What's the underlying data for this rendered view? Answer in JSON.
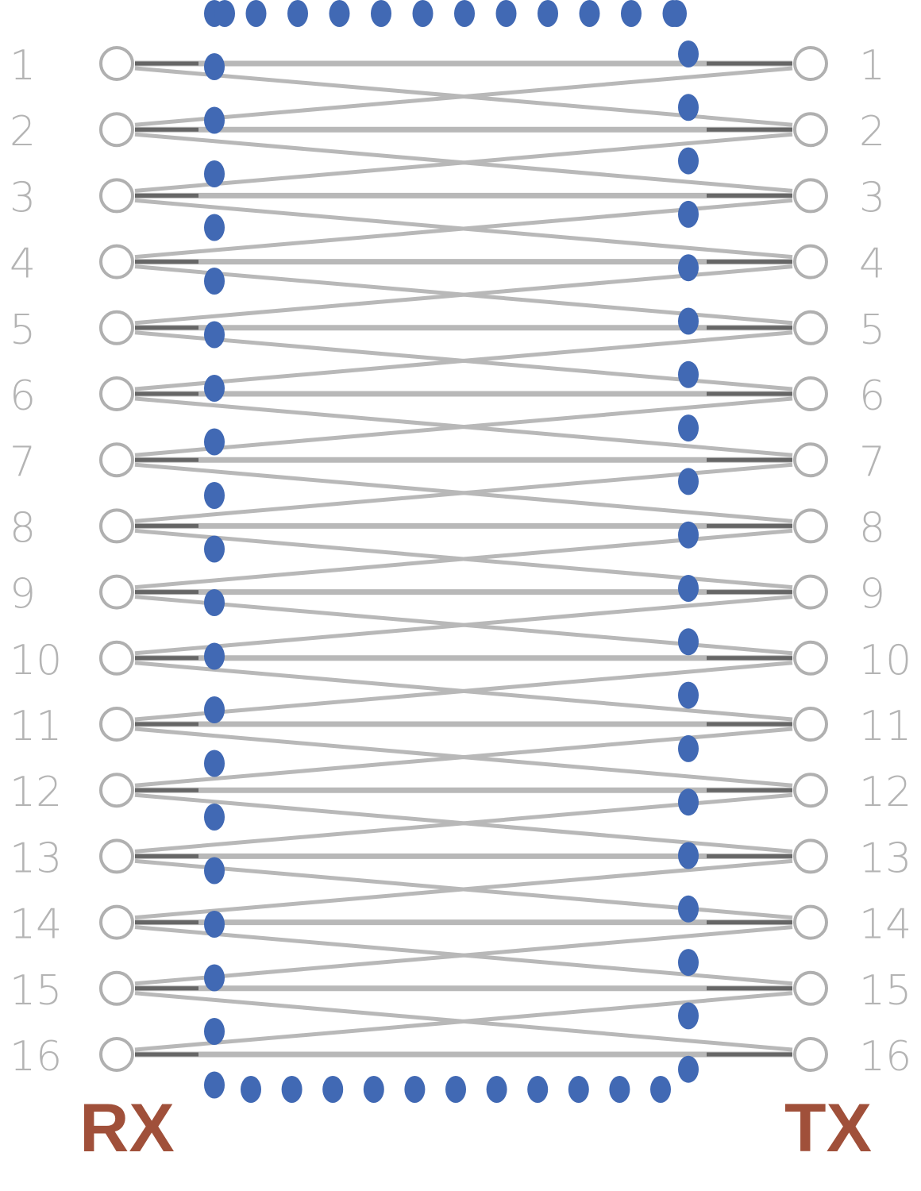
{
  "diagram": {
    "left_side_label": "RX",
    "right_side_label": "TX",
    "left_pins": [
      "1",
      "2",
      "3",
      "4",
      "5",
      "6",
      "7",
      "8",
      "9",
      "10",
      "11",
      "12",
      "13",
      "14",
      "15",
      "16"
    ],
    "right_pins": [
      "1",
      "2",
      "3",
      "4",
      "5",
      "6",
      "7",
      "8",
      "9",
      "10",
      "11",
      "12",
      "13",
      "14",
      "15",
      "16"
    ],
    "connections": "each RX pin wired straight to the same TX pin, with crossover wires to adjacent pins",
    "colors": {
      "border_dots": "#4169b4",
      "wires": "#b8b8b8",
      "pin_circles": "#b0b0b0",
      "pin_labels": "#b4b4b4",
      "side_labels": "#a0503a"
    }
  }
}
